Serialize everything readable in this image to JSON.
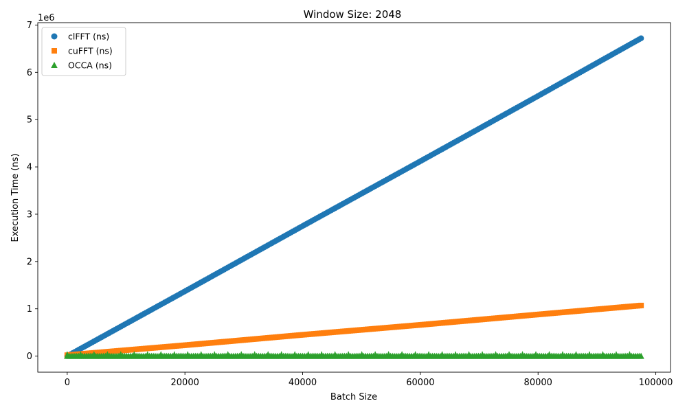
{
  "chart_data": {
    "type": "scatter",
    "title": "Window Size: 2048",
    "xlabel": "Batch Size",
    "ylabel": "Execution Time (ns)",
    "y_offset_label": "1e6",
    "y_scale_factor": 1000000,
    "xlim": [
      -5000,
      102500
    ],
    "ylim": [
      -0.34,
      7.05
    ],
    "xticks": [
      0,
      20000,
      40000,
      60000,
      80000,
      100000
    ],
    "xtick_labels": [
      "0",
      "20000",
      "40000",
      "60000",
      "80000",
      "100000"
    ],
    "yticks": [
      0,
      1,
      2,
      3,
      4,
      5,
      6,
      7
    ],
    "ytick_labels": [
      "0",
      "1",
      "2",
      "3",
      "4",
      "5",
      "6",
      "7"
    ],
    "grid": false,
    "legend_position": "top-left",
    "x_range": [
      0,
      97500
    ],
    "series": [
      {
        "name": "clFFT (ns)",
        "marker": "circle",
        "color": "#1f77b4",
        "points": [
          [
            0,
            0.0
          ],
          [
            20000,
            1.37
          ],
          [
            40000,
            2.75
          ],
          [
            60000,
            4.12
          ],
          [
            80000,
            5.5
          ],
          [
            97500,
            6.72
          ]
        ]
      },
      {
        "name": "cuFFT (ns)",
        "marker": "square",
        "color": "#ff7f0e",
        "points": [
          [
            0,
            0.02
          ],
          [
            20000,
            0.23
          ],
          [
            40000,
            0.45
          ],
          [
            60000,
            0.66
          ],
          [
            80000,
            0.88
          ],
          [
            97500,
            1.07
          ]
        ]
      },
      {
        "name": "OCCA (ns)",
        "marker": "triangle",
        "color": "#2ca02c",
        "points": [
          [
            0,
            0.0
          ],
          [
            20000,
            0.0
          ],
          [
            40000,
            0.0
          ],
          [
            60000,
            0.0
          ],
          [
            80000,
            0.0
          ],
          [
            97500,
            0.0
          ]
        ]
      }
    ]
  }
}
